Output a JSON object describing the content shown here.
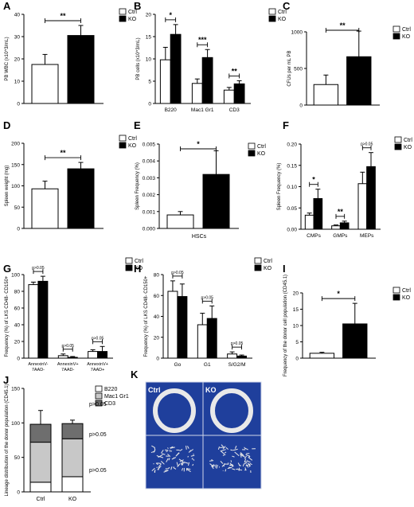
{
  "chart_data": [
    {
      "panel": "A",
      "type": "bar",
      "ylabel": "PB WBC (x10^3/mL)",
      "ylim": [
        0,
        40
      ],
      "yticks": [
        0,
        10,
        20,
        30,
        40
      ],
      "categories": [
        "Ctrl",
        "KO"
      ],
      "values": [
        17.5,
        30.5
      ],
      "errors": [
        4.5,
        4.5
      ],
      "legend": [
        "Ctrl",
        "KO"
      ],
      "significance": [
        {
          "from": 0,
          "to": 1,
          "label": "**"
        }
      ]
    },
    {
      "panel": "B",
      "type": "bar",
      "ylabel": "PB cells (x10^3/mL)",
      "ylim": [
        0,
        20
      ],
      "yticks": [
        0,
        5,
        10,
        15,
        20
      ],
      "categories": [
        "B220",
        "Mac1 Gr1",
        "CD3"
      ],
      "series": [
        {
          "name": "Ctrl",
          "values": [
            9.8,
            4.5,
            3.0
          ],
          "errors": [
            2.8,
            1.0,
            0.6
          ]
        },
        {
          "name": "KO",
          "values": [
            15.5,
            10.3,
            4.4
          ],
          "errors": [
            2.2,
            1.8,
            0.7
          ]
        }
      ],
      "legend": [
        "Ctrl",
        "KO"
      ],
      "significance": [
        {
          "group": 0,
          "label": "*"
        },
        {
          "group": 1,
          "label": "***"
        },
        {
          "group": 2,
          "label": "**"
        }
      ]
    },
    {
      "panel": "C",
      "type": "bar",
      "ylabel": "CFUs per mL PB",
      "ylim": [
        0,
        1000
      ],
      "yticks": [
        0,
        500,
        1000
      ],
      "categories": [
        "Ctrl",
        "KO"
      ],
      "values": [
        280,
        660
      ],
      "errors": [
        130,
        350
      ],
      "legend": [
        "Ctrl",
        "KO"
      ],
      "significance": [
        {
          "from": 0,
          "to": 1,
          "label": "**"
        }
      ]
    },
    {
      "panel": "D",
      "type": "bar",
      "ylabel": "Spleen weight (mg)",
      "ylim": [
        0,
        200
      ],
      "yticks": [
        0,
        50,
        100,
        150,
        200
      ],
      "categories": [
        "Ctrl",
        "KO"
      ],
      "values": [
        93,
        140
      ],
      "errors": [
        18,
        15
      ],
      "legend": [
        "Ctrl",
        "KO"
      ],
      "significance": [
        {
          "from": 0,
          "to": 1,
          "label": "**"
        }
      ]
    },
    {
      "panel": "E",
      "type": "bar",
      "ylabel": "Spleen Frequency (%)",
      "ylim": [
        0,
        0.005
      ],
      "yticks": [
        0,
        0.001,
        0.002,
        0.003,
        0.004,
        0.005
      ],
      "yticklabels": [
        "0.000",
        "0.001",
        "0.002",
        "0.003",
        "0.004",
        "0.005"
      ],
      "xlabel": "HSCs",
      "categories": [
        "Ctrl",
        "KO"
      ],
      "values": [
        0.0008,
        0.0032
      ],
      "errors": [
        0.0002,
        0.0014
      ],
      "legend": [
        "Ctrl",
        "KO"
      ],
      "significance": [
        {
          "from": 0,
          "to": 1,
          "label": "*"
        }
      ]
    },
    {
      "panel": "F",
      "type": "bar",
      "ylabel": "Spleen Frequency (%)",
      "ylim": [
        0,
        0.2
      ],
      "yticks": [
        0,
        0.05,
        0.1,
        0.15,
        0.2
      ],
      "yticklabels": [
        "0.00",
        "0.05",
        "0.10",
        "0.15",
        "0.20"
      ],
      "categories": [
        "CMPs",
        "GMPs",
        "MEPs"
      ],
      "series": [
        {
          "name": "Ctrl",
          "values": [
            0.033,
            0.008,
            0.107
          ],
          "errors": [
            0.005,
            0.002,
            0.027
          ]
        },
        {
          "name": "KO",
          "values": [
            0.072,
            0.015,
            0.147
          ],
          "errors": [
            0.022,
            0.004,
            0.033
          ]
        }
      ],
      "legend": [
        "Ctrl",
        "KO"
      ],
      "significance": [
        {
          "group": 0,
          "label": "*"
        },
        {
          "group": 1,
          "label": "**"
        },
        {
          "group": 2,
          "label": "p>0.05"
        }
      ]
    },
    {
      "panel": "G",
      "type": "bar",
      "ylabel": "Frequency (%) of LKS CD48- CD150+",
      "ylim": [
        0,
        100
      ],
      "yticks": [
        0,
        20,
        40,
        60,
        80,
        100
      ],
      "categories": [
        "AnnexinV- 7AAD-",
        "AnnexinV+ 7AAD-",
        "AnnexinV+ 7AAD+"
      ],
      "series": [
        {
          "name": "Ctrl",
          "values": [
            88,
            3,
            8
          ],
          "errors": [
            3,
            2,
            2
          ]
        },
        {
          "name": "KO",
          "values": [
            92,
            1,
            8
          ],
          "errors": [
            6,
            1,
            6
          ]
        }
      ],
      "legend": [
        "Ctrl",
        "KO"
      ],
      "significance": [
        {
          "group": 0,
          "label": "p>0.05"
        },
        {
          "group": 1,
          "label": "p>0.05"
        },
        {
          "group": 2,
          "label": "p>0.05"
        }
      ]
    },
    {
      "panel": "H",
      "type": "bar",
      "ylabel": "Frequency (%) of LKS CD48- CD150+",
      "ylim": [
        0,
        80
      ],
      "yticks": [
        0,
        20,
        40,
        60,
        80
      ],
      "categories": [
        "Go",
        "G1",
        "S/G2/M"
      ],
      "series": [
        {
          "name": "Ctrl",
          "values": [
            64,
            32,
            4
          ],
          "errors": [
            10,
            11,
            2
          ]
        },
        {
          "name": "KO",
          "values": [
            59,
            38,
            2
          ],
          "errors": [
            12,
            12,
            1
          ]
        }
      ],
      "legend": [
        "Ctrl",
        "KO"
      ],
      "significance": [
        {
          "group": 0,
          "label": "p>0.05"
        },
        {
          "group": 1,
          "label": "p>0.05"
        },
        {
          "group": 2,
          "label": "p>0.05"
        }
      ]
    },
    {
      "panel": "I",
      "type": "bar",
      "ylabel": "Frequency of the donor cell population (CD45.1)",
      "ylim": [
        0,
        20
      ],
      "yticks": [
        0,
        5,
        10,
        15,
        20
      ],
      "categories": [
        "Ctrl",
        "KO"
      ],
      "values": [
        1.5,
        10.5
      ],
      "errors": [
        0.3,
        6.3
      ],
      "legend": [
        "Ctrl",
        "KO"
      ],
      "significance": [
        {
          "from": 0,
          "to": 1,
          "label": "*"
        }
      ]
    },
    {
      "panel": "J",
      "type": "stacked_bar",
      "ylabel": "Lineage distribution of the donor population (CD45.1)",
      "ylim": [
        0,
        150
      ],
      "yticks": [
        0,
        50,
        100,
        150
      ],
      "categories": [
        "Ctrl",
        "KO"
      ],
      "series": [
        {
          "name": "B220",
          "values": [
            14,
            22
          ],
          "errors": [
            2,
            13
          ],
          "color": "#ffffff"
        },
        {
          "name": "Mac1 Gr1",
          "values": [
            58,
            55
          ],
          "errors": [
            0,
            0
          ],
          "color": "#c8c8c8"
        },
        {
          "name": "CD3",
          "values": [
            26,
            22
          ],
          "errors": [
            20,
            5
          ],
          "color": "#6e6e6e"
        }
      ],
      "legend": [
        "B220",
        "Mac1 Gr1",
        "CD3"
      ],
      "annotations": [
        "p>0.05",
        "p>0.05",
        "p>0.05"
      ]
    }
  ],
  "panel_k": {
    "label": "K",
    "left_title": "Ctrl",
    "right_title": "KO"
  },
  "colors": {
    "ctrl": "#ffffff",
    "ko": "#000000",
    "image_bg": "#1f3f9c"
  }
}
